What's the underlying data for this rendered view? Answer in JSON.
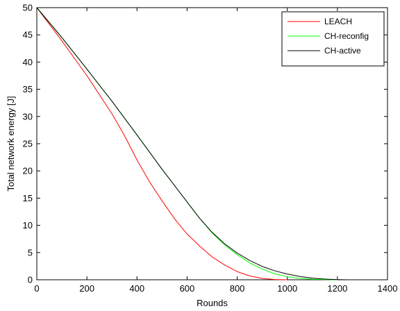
{
  "chart_data": {
    "type": "line",
    "title": "",
    "xlabel": "Rounds",
    "ylabel": "Total network energy [J]",
    "xlim": [
      0,
      1400
    ],
    "ylim": [
      0,
      50
    ],
    "x_ticks": [
      0,
      200,
      400,
      600,
      800,
      1000,
      1200,
      1400
    ],
    "y_ticks": [
      0,
      5,
      10,
      15,
      20,
      25,
      30,
      35,
      40,
      45,
      50
    ],
    "grid": false,
    "legend_position": "top-right",
    "series": [
      {
        "name": "LEACH",
        "color": "#ff0000",
        "points": [
          [
            0,
            50
          ],
          [
            100,
            43.9
          ],
          [
            200,
            37.5
          ],
          [
            300,
            30.5
          ],
          [
            350,
            26.5
          ],
          [
            400,
            22
          ],
          [
            450,
            18
          ],
          [
            500,
            14.5
          ],
          [
            550,
            11.2
          ],
          [
            600,
            8.4
          ],
          [
            650,
            6.2
          ],
          [
            700,
            4.2
          ],
          [
            750,
            2.7
          ],
          [
            800,
            1.5
          ],
          [
            850,
            0.7
          ],
          [
            900,
            0.25
          ],
          [
            950,
            0.05
          ],
          [
            1000,
            0
          ]
        ]
      },
      {
        "name": "CH-reconfig",
        "color": "#00ff00",
        "points": [
          [
            0,
            50
          ],
          [
            100,
            44.5
          ],
          [
            200,
            38.7
          ],
          [
            300,
            32.8
          ],
          [
            400,
            26.6
          ],
          [
            500,
            20.3
          ],
          [
            600,
            14.3
          ],
          [
            650,
            11.3
          ],
          [
            700,
            8.6
          ],
          [
            750,
            6.4
          ],
          [
            800,
            4.6
          ],
          [
            850,
            3.1
          ],
          [
            900,
            1.95
          ],
          [
            950,
            1.1
          ],
          [
            1000,
            0.55
          ],
          [
            1050,
            0.25
          ],
          [
            1100,
            0.1
          ],
          [
            1150,
            0.05
          ],
          [
            1200,
            0
          ]
        ]
      },
      {
        "name": "CH-active",
        "color": "#000000",
        "points": [
          [
            0,
            50
          ],
          [
            100,
            44.5
          ],
          [
            200,
            38.7
          ],
          [
            300,
            32.8
          ],
          [
            400,
            26.6
          ],
          [
            500,
            20.3
          ],
          [
            600,
            14.3
          ],
          [
            650,
            11.3
          ],
          [
            700,
            8.7
          ],
          [
            750,
            6.6
          ],
          [
            800,
            4.9
          ],
          [
            850,
            3.55
          ],
          [
            900,
            2.45
          ],
          [
            950,
            1.65
          ],
          [
            1000,
            1.05
          ],
          [
            1050,
            0.6
          ],
          [
            1100,
            0.3
          ],
          [
            1150,
            0.12
          ],
          [
            1200,
            0.04
          ],
          [
            1240,
            0
          ]
        ]
      }
    ]
  }
}
